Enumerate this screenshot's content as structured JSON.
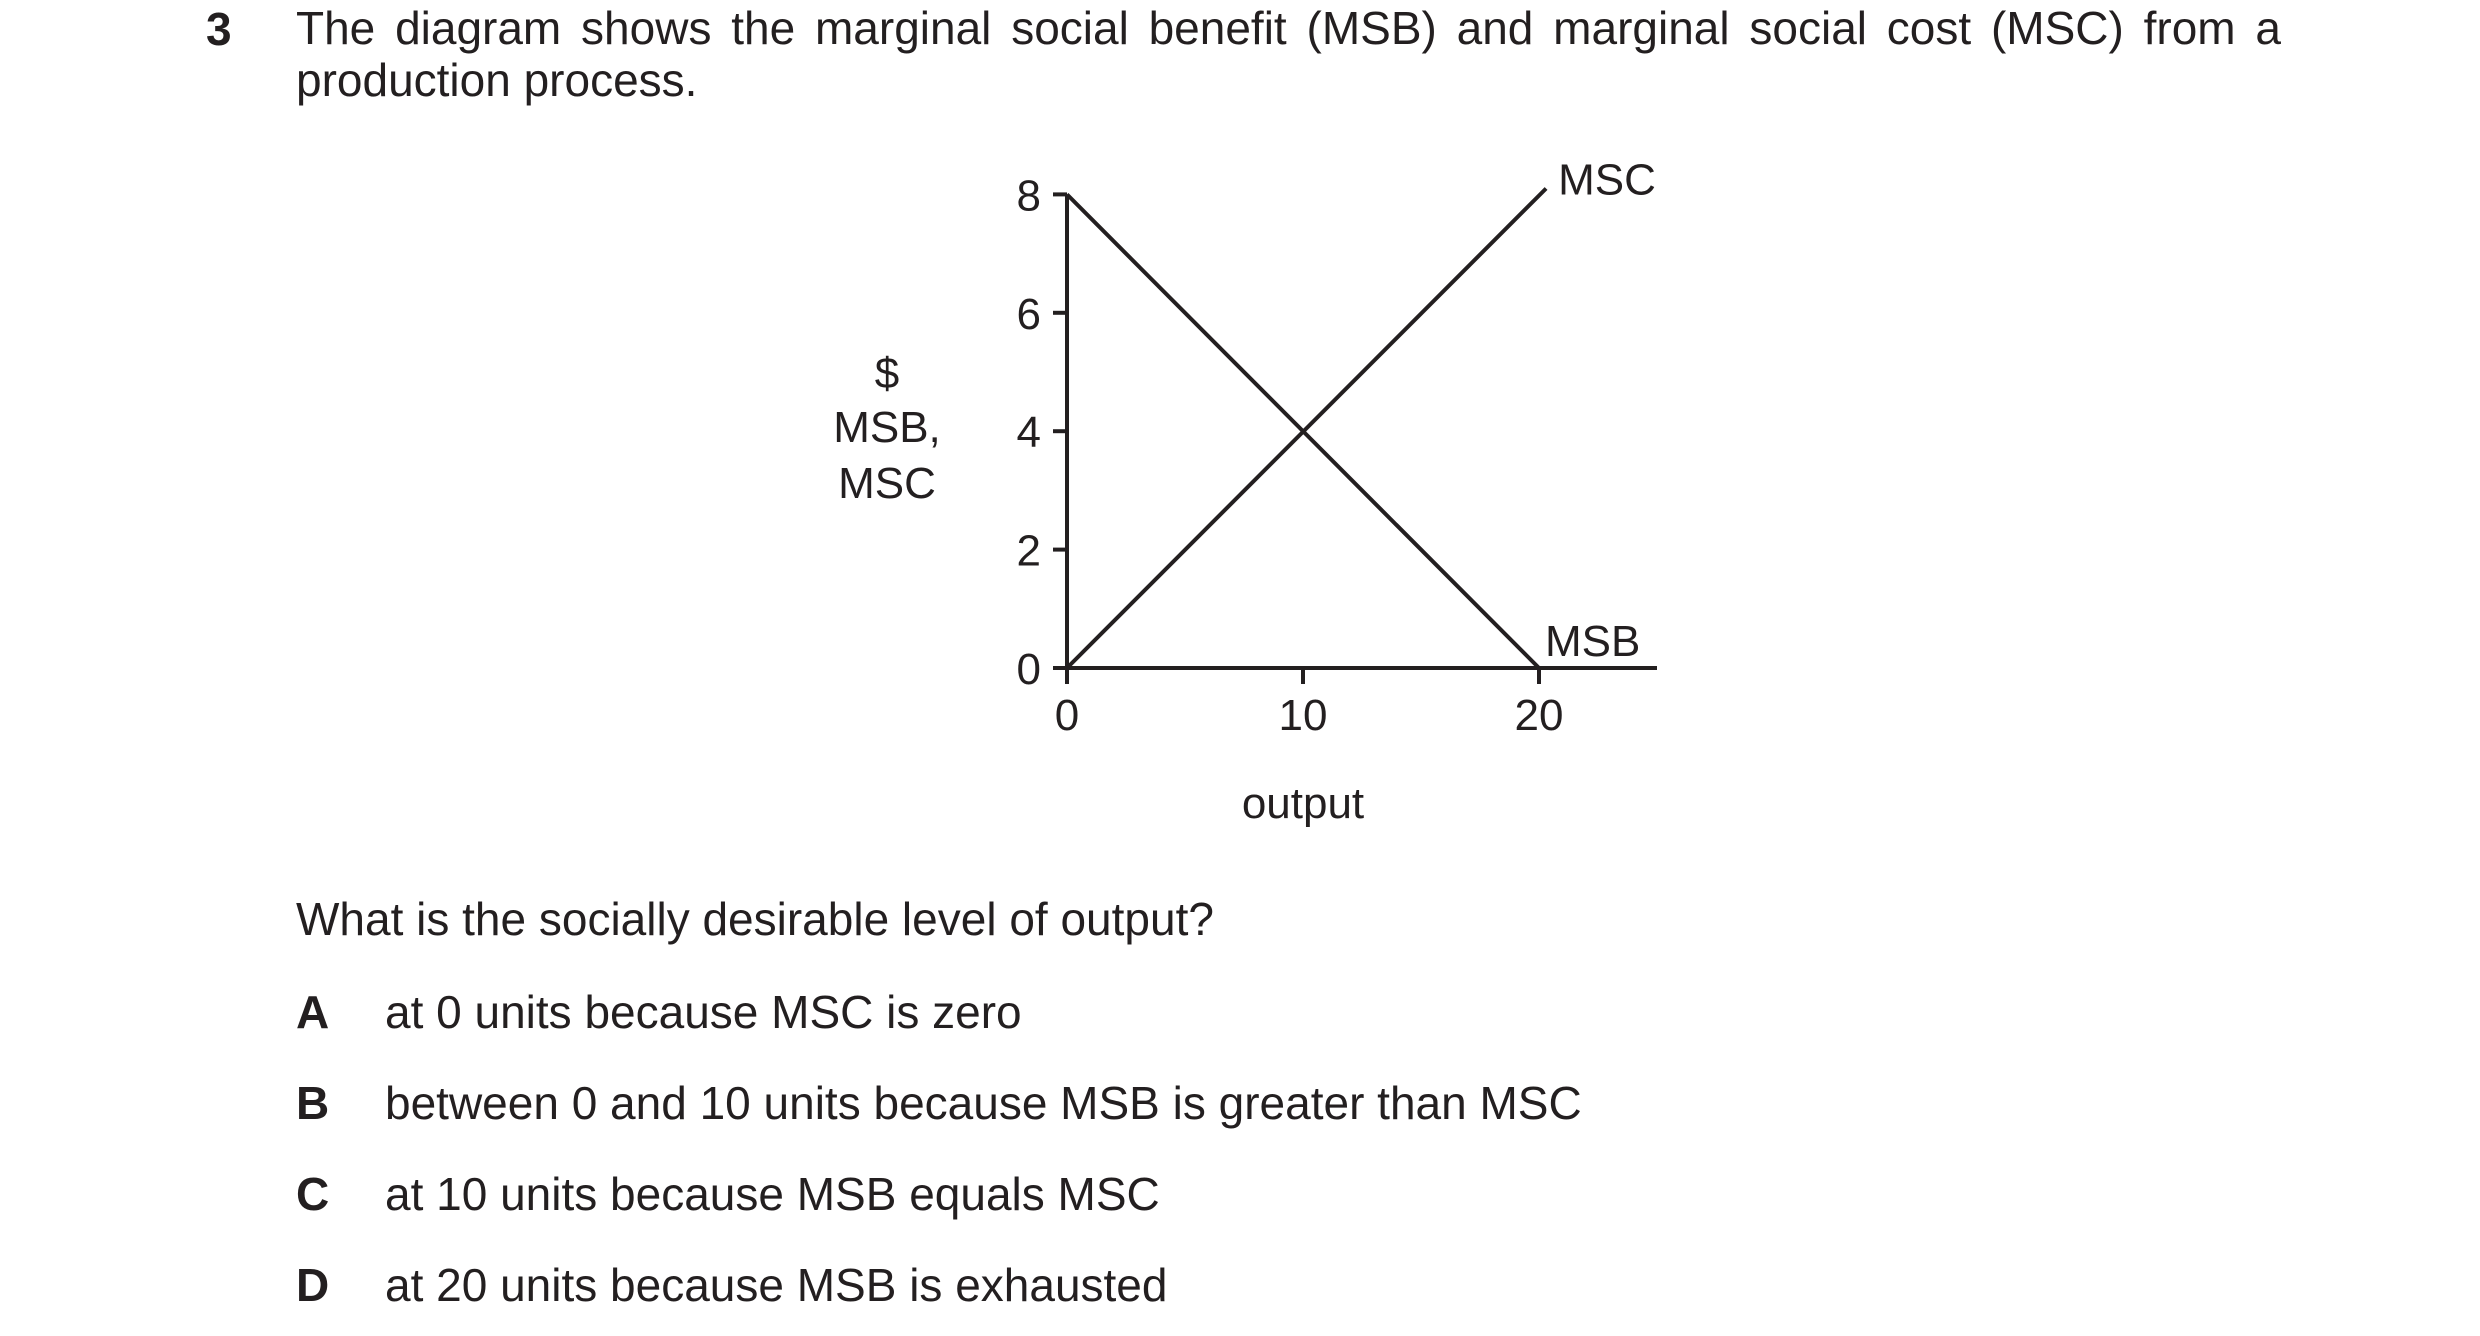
{
  "question": {
    "number": "3",
    "stem": "The diagram shows the marginal social benefit (MSB) and marginal social cost (MSC) from a production process.",
    "prompt": "What is the socially desirable level of output?",
    "options": [
      {
        "letter": "A",
        "text": "at 0 units because MSC is zero"
      },
      {
        "letter": "B",
        "text": "between 0 and 10 units because MSB is greater than MSC"
      },
      {
        "letter": "C",
        "text": "at 10 units because MSB equals MSC"
      },
      {
        "letter": "D",
        "text": "at 20 units because MSB is exhausted"
      }
    ]
  },
  "chart_data": {
    "type": "line",
    "xlabel": "output",
    "ylabel_lines": [
      "$",
      "MSB,",
      "MSC"
    ],
    "xlim": [
      0,
      25
    ],
    "ylim": [
      0,
      8
    ],
    "x_ticks": [
      0,
      10,
      20
    ],
    "y_ticks": [
      0,
      2,
      4,
      6,
      8
    ],
    "series": [
      {
        "name": "MSC",
        "x": [
          0,
          20.3
        ],
        "y": [
          0,
          8.1
        ]
      },
      {
        "name": "MSB",
        "x": [
          0,
          20
        ],
        "y": [
          8,
          0
        ]
      }
    ],
    "grid": false
  }
}
